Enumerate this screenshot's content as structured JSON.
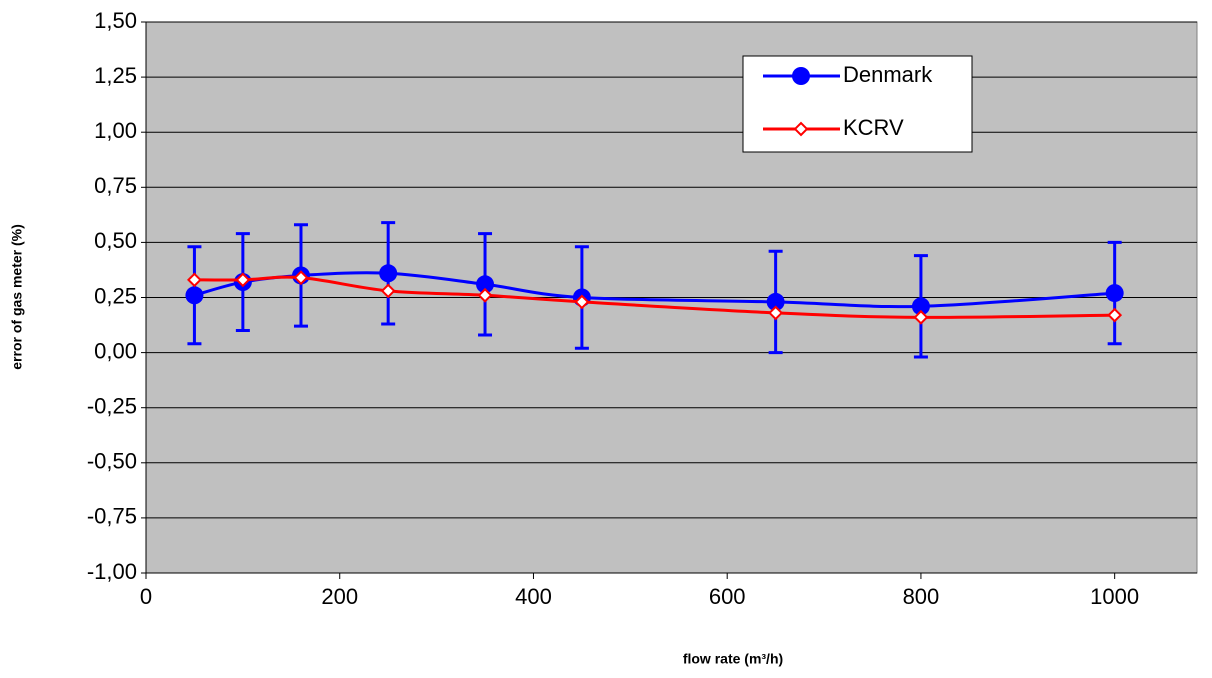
{
  "chart_data": {
    "type": "line",
    "x_label": "flow rate (m³/h)",
    "y_label": "error of  gas meter (%)",
    "x": [
      50,
      100,
      160,
      250,
      350,
      450,
      650,
      800,
      1000
    ],
    "series": [
      {
        "name": "Denmark",
        "color": "#0000ff",
        "marker": "circle",
        "values": [
          0.26,
          0.32,
          0.35,
          0.36,
          0.31,
          0.25,
          0.23,
          0.21,
          0.27
        ],
        "errors": [
          0.22,
          0.22,
          0.23,
          0.23,
          0.23,
          0.23,
          0.23,
          0.23,
          0.23
        ]
      },
      {
        "name": "KCRV",
        "color": "#ff0000",
        "marker": "diamond",
        "values": [
          0.33,
          0.33,
          0.34,
          0.28,
          0.26,
          0.23,
          0.18,
          0.16,
          0.17
        ]
      }
    ],
    "xlim": [
      0,
      1085
    ],
    "xticks": [
      0,
      200,
      400,
      600,
      800,
      1000
    ],
    "ylim": [
      -1,
      1.5
    ],
    "yticks": [
      {
        "value": -1,
        "label": "-1,00"
      },
      {
        "value": -0.75,
        "label": "-0,75"
      },
      {
        "value": -0.5,
        "label": "-0,50"
      },
      {
        "value": -0.25,
        "label": "-0,25"
      },
      {
        "value": 0,
        "label": "0,00"
      },
      {
        "value": 0.25,
        "label": "0,25"
      },
      {
        "value": 0.5,
        "label": "0,50"
      },
      {
        "value": 0.75,
        "label": "0,75"
      },
      {
        "value": 1,
        "label": "1,00"
      },
      {
        "value": 1.25,
        "label": "1,25"
      },
      {
        "value": 1.5,
        "label": "1,50"
      }
    ],
    "grid": true,
    "legend": "upper right"
  }
}
